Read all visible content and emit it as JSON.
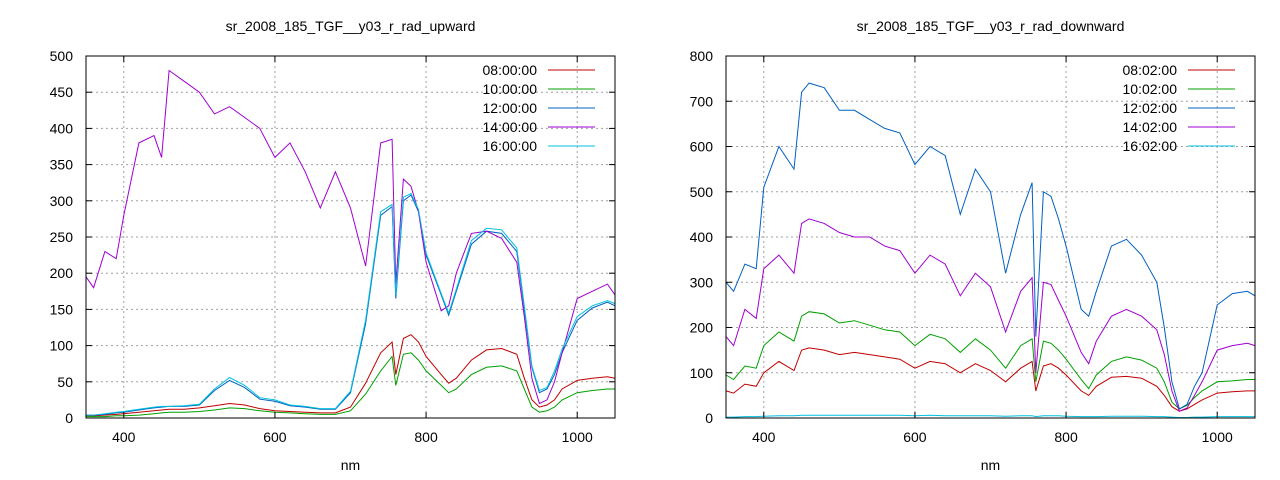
{
  "chart_data": [
    {
      "type": "line",
      "title": "sr_2008_185_TGF__y03_r_rad_upward",
      "xlabel": "nm",
      "ylabel": "",
      "xlim": [
        350,
        1050
      ],
      "ylim": [
        0,
        500
      ],
      "xticks": [
        400,
        600,
        800,
        1000
      ],
      "yticks": [
        0,
        50,
        100,
        150,
        200,
        250,
        300,
        350,
        400,
        450,
        500
      ],
      "grid": true,
      "legend_position": "top-right",
      "x": [
        350,
        360,
        375,
        390,
        400,
        420,
        440,
        450,
        460,
        480,
        500,
        520,
        540,
        560,
        580,
        600,
        620,
        640,
        660,
        680,
        700,
        720,
        740,
        755,
        760,
        770,
        780,
        790,
        800,
        820,
        830,
        840,
        860,
        880,
        900,
        920,
        930,
        940,
        950,
        960,
        970,
        980,
        1000,
        1020,
        1040,
        1050
      ],
      "series": [
        {
          "name": "08:00:00",
          "color": "#c00000",
          "values": [
            3,
            3,
            4,
            5,
            6,
            8,
            10,
            11,
            12,
            12,
            14,
            17,
            20,
            18,
            13,
            10,
            9,
            8,
            7,
            7,
            15,
            48,
            90,
            105,
            60,
            110,
            115,
            105,
            85,
            60,
            48,
            55,
            80,
            94,
            96,
            88,
            55,
            25,
            15,
            18,
            25,
            40,
            52,
            55,
            57,
            55
          ]
        },
        {
          "name": "10:00:00",
          "color": "#00a000",
          "values": [
            2,
            2,
            2,
            3,
            3,
            4,
            6,
            7,
            8,
            8,
            9,
            11,
            14,
            13,
            10,
            8,
            7,
            6,
            5,
            5,
            10,
            33,
            65,
            85,
            45,
            88,
            90,
            80,
            65,
            45,
            35,
            40,
            60,
            70,
            72,
            65,
            40,
            15,
            8,
            10,
            15,
            25,
            35,
            38,
            40,
            40
          ]
        },
        {
          "name": "12:00:00",
          "color": "#0060c0",
          "values": [
            4,
            4,
            5,
            7,
            8,
            11,
            14,
            15,
            16,
            16,
            18,
            38,
            52,
            42,
            26,
            23,
            17,
            15,
            12,
            12,
            35,
            130,
            280,
            292,
            165,
            300,
            308,
            285,
            225,
            170,
            142,
            175,
            240,
            258,
            255,
            230,
            150,
            70,
            35,
            40,
            60,
            90,
            135,
            152,
            160,
            155
          ]
        },
        {
          "name": "14:00:00",
          "color": "#a000d0",
          "values": [
            195,
            180,
            230,
            220,
            280,
            380,
            390,
            360,
            480,
            465,
            450,
            420,
            430,
            415,
            400,
            360,
            380,
            340,
            290,
            340,
            290,
            210,
            380,
            385,
            185,
            330,
            320,
            285,
            215,
            148,
            155,
            200,
            255,
            258,
            248,
            215,
            140,
            55,
            20,
            25,
            50,
            90,
            165,
            175,
            185,
            170
          ]
        },
        {
          "name": "16:00:00",
          "color": "#00c0e0",
          "values": [
            4,
            4,
            6,
            8,
            9,
            12,
            15,
            16,
            16,
            17,
            19,
            40,
            56,
            45,
            28,
            25,
            18,
            16,
            13,
            13,
            37,
            135,
            285,
            295,
            170,
            305,
            310,
            288,
            228,
            172,
            145,
            178,
            245,
            262,
            260,
            235,
            155,
            72,
            38,
            42,
            65,
            95,
            140,
            155,
            162,
            158
          ]
        }
      ]
    },
    {
      "type": "line",
      "title": "sr_2008_185_TGF__y03_r_rad_downward",
      "xlabel": "nm",
      "ylabel": "",
      "xlim": [
        350,
        1050
      ],
      "ylim": [
        0,
        800
      ],
      "xticks": [
        400,
        600,
        800,
        1000
      ],
      "yticks": [
        0,
        100,
        200,
        300,
        400,
        500,
        600,
        700,
        800
      ],
      "grid": true,
      "legend_position": "top-right",
      "x": [
        350,
        360,
        375,
        390,
        400,
        420,
        440,
        450,
        460,
        480,
        500,
        520,
        540,
        560,
        580,
        600,
        620,
        640,
        660,
        680,
        700,
        720,
        740,
        755,
        760,
        770,
        780,
        790,
        800,
        820,
        830,
        840,
        860,
        880,
        900,
        920,
        930,
        940,
        950,
        960,
        970,
        980,
        1000,
        1020,
        1040,
        1050
      ],
      "series": [
        {
          "name": "08:02:00",
          "color": "#c00000",
          "values": [
            60,
            55,
            75,
            70,
            100,
            125,
            105,
            150,
            155,
            150,
            140,
            145,
            140,
            135,
            130,
            110,
            125,
            120,
            100,
            120,
            105,
            80,
            110,
            125,
            60,
            115,
            120,
            110,
            95,
            60,
            50,
            70,
            90,
            92,
            88,
            70,
            50,
            25,
            15,
            20,
            30,
            40,
            55,
            58,
            60,
            60
          ]
        },
        {
          "name": "10:02:00",
          "color": "#00a000",
          "values": [
            95,
            85,
            115,
            110,
            160,
            190,
            170,
            225,
            235,
            230,
            210,
            215,
            205,
            195,
            190,
            160,
            185,
            175,
            145,
            175,
            150,
            110,
            160,
            175,
            80,
            170,
            165,
            150,
            130,
            85,
            65,
            95,
            125,
            135,
            128,
            110,
            80,
            35,
            20,
            28,
            45,
            60,
            80,
            82,
            85,
            85
          ]
        },
        {
          "name": "12:02:00",
          "color": "#0060c0",
          "values": [
            300,
            280,
            340,
            330,
            510,
            600,
            550,
            720,
            740,
            730,
            680,
            680,
            660,
            640,
            630,
            560,
            600,
            580,
            450,
            550,
            500,
            320,
            450,
            520,
            180,
            500,
            490,
            440,
            380,
            240,
            225,
            280,
            380,
            395,
            360,
            300,
            200,
            80,
            20,
            30,
            70,
            100,
            250,
            275,
            280,
            270
          ]
        },
        {
          "name": "14:02:00",
          "color": "#a000d0",
          "values": [
            180,
            160,
            240,
            220,
            330,
            360,
            320,
            430,
            440,
            430,
            410,
            400,
            400,
            380,
            370,
            320,
            360,
            340,
            270,
            320,
            290,
            190,
            280,
            310,
            100,
            300,
            295,
            260,
            225,
            145,
            120,
            170,
            225,
            240,
            225,
            195,
            140,
            60,
            15,
            22,
            50,
            80,
            150,
            160,
            165,
            160
          ]
        },
        {
          "name": "16:02:00",
          "color": "#00c0e0",
          "values": [
            2,
            2,
            3,
            3,
            4,
            5,
            5,
            6,
            6,
            6,
            6,
            6,
            6,
            6,
            6,
            5,
            6,
            5,
            5,
            5,
            5,
            4,
            5,
            5,
            3,
            5,
            5,
            5,
            4,
            3,
            3,
            3,
            4,
            4,
            4,
            3,
            3,
            2,
            1,
            1,
            2,
            2,
            3,
            3,
            3,
            3
          ]
        }
      ]
    }
  ]
}
